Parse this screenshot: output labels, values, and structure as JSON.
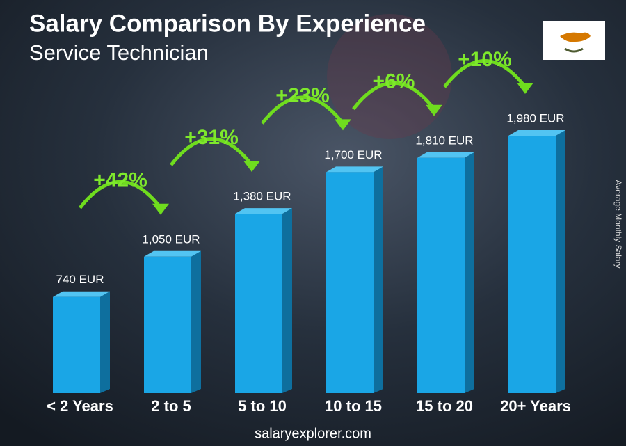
{
  "chart_data": {
    "type": "bar",
    "title": "Salary Comparison By Experience",
    "subtitle": "Service Technician",
    "y_axis_label": "Average Monthly Salary",
    "categories": [
      "< 2 Years",
      "2 to 5",
      "5 to 10",
      "10 to 15",
      "15 to 20",
      "20+ Years"
    ],
    "values": [
      740,
      1050,
      1380,
      1700,
      1810,
      1980
    ],
    "value_labels": [
      "740 EUR",
      "1,050 EUR",
      "1,380 EUR",
      "1,700 EUR",
      "1,810 EUR",
      "1,980 EUR"
    ],
    "annotations": [
      "+42%",
      "+31%",
      "+23%",
      "+6%",
      "+10%"
    ],
    "color": "#1aa6e6",
    "footer": "salaryexplorer.com"
  }
}
